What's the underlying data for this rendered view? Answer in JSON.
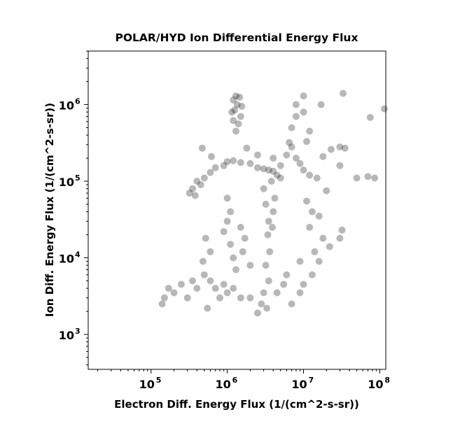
{
  "chart_data": {
    "type": "scatter",
    "title": "POLAR/HYD  Ion Differential Energy Flux",
    "xlabel": "Electron Diff. Energy Flux (1/(cm^2-s-sr))",
    "ylabel": "Ion Diff. Energy Flux (1/(cm^2-s-sr))",
    "xscale": "log",
    "yscale": "log",
    "xlim": [
      15000,
      120000000
    ],
    "ylim": [
      350,
      5000000
    ],
    "grid": false,
    "marker_color": "#000000",
    "marker_opacity": 0.28,
    "x_ticks": [
      {
        "value": 100000,
        "base": "10",
        "exp": "5"
      },
      {
        "value": 1000000,
        "base": "10",
        "exp": "6"
      },
      {
        "value": 10000000,
        "base": "10",
        "exp": "7"
      },
      {
        "value": 100000000,
        "base": "10",
        "exp": "8"
      }
    ],
    "y_ticks": [
      {
        "value": 1000,
        "base": "10",
        "exp": "3"
      },
      {
        "value": 10000,
        "base": "10",
        "exp": "4"
      },
      {
        "value": 100000,
        "base": "10",
        "exp": "5"
      },
      {
        "value": 1000000,
        "base": "10",
        "exp": "6"
      }
    ],
    "points": [
      [
        1300000,
        1300000
      ],
      [
        1450000,
        1250000
      ],
      [
        1200000,
        1150000
      ],
      [
        1350000,
        1000000
      ],
      [
        1250000,
        850000
      ],
      [
        1500000,
        700000
      ],
      [
        1200000,
        620000
      ],
      [
        1400000,
        560000
      ],
      [
        1300000,
        450000
      ],
      [
        1150000,
        800000
      ],
      [
        1550000,
        950000
      ],
      [
        1000000,
        180000
      ],
      [
        1500000,
        175000
      ],
      [
        2000000,
        170000
      ],
      [
        2500000,
        150000
      ],
      [
        3000000,
        145000
      ],
      [
        3500000,
        140000
      ],
      [
        4000000,
        135000
      ],
      [
        4500000,
        120000
      ],
      [
        5000000,
        110000
      ],
      [
        700000,
        150000
      ],
      [
        600000,
        130000
      ],
      [
        500000,
        110000
      ],
      [
        400000,
        100000
      ],
      [
        350000,
        80000
      ],
      [
        320000,
        70000
      ],
      [
        380000,
        65000
      ],
      [
        450000,
        90000
      ],
      [
        900000,
        160000
      ],
      [
        1200000,
        185000
      ],
      [
        1000000,
        60000
      ],
      [
        1100000,
        40000
      ],
      [
        1000000,
        30000
      ],
      [
        900000,
        22000
      ],
      [
        1100000,
        15000
      ],
      [
        1200000,
        10000
      ],
      [
        1300000,
        7000
      ],
      [
        1500000,
        25000
      ],
      [
        1700000,
        18000
      ],
      [
        1600000,
        12000
      ],
      [
        2000000,
        8000
      ],
      [
        3000000,
        80000
      ],
      [
        3200000,
        50000
      ],
      [
        3500000,
        30000
      ],
      [
        3400000,
        20000
      ],
      [
        3600000,
        12000
      ],
      [
        3200000,
        8000
      ],
      [
        3500000,
        5000
      ],
      [
        3000000,
        3500
      ],
      [
        2800000,
        2500
      ],
      [
        3300000,
        2200
      ],
      [
        2500000,
        1900
      ],
      [
        3800000,
        100000
      ],
      [
        4200000,
        60000
      ],
      [
        4000000,
        40000
      ],
      [
        3900000,
        25000
      ],
      [
        150000,
        3000
      ],
      [
        170000,
        4000
      ],
      [
        200000,
        3500
      ],
      [
        140000,
        2500
      ],
      [
        250000,
        4500
      ],
      [
        300000,
        3000
      ],
      [
        350000,
        5000
      ],
      [
        400000,
        4000
      ],
      [
        500000,
        6000
      ],
      [
        600000,
        5000
      ],
      [
        700000,
        4000
      ],
      [
        800000,
        3000
      ],
      [
        900000,
        4500
      ],
      [
        1000000,
        3500
      ],
      [
        1200000,
        4000
      ],
      [
        1500000,
        3000
      ],
      [
        2000000,
        3000
      ],
      [
        4500000,
        3500
      ],
      [
        5500000,
        4500
      ],
      [
        6000000,
        6000
      ],
      [
        7000000,
        2500
      ],
      [
        9000000,
        3500
      ],
      [
        10000000,
        4500
      ],
      [
        550000,
        2200
      ],
      [
        600000,
        12000
      ],
      [
        480000,
        9000
      ],
      [
        520000,
        18000
      ],
      [
        6500000,
        320000
      ],
      [
        7000000,
        280000
      ],
      [
        8000000,
        200000
      ],
      [
        6000000,
        220000
      ],
      [
        9000000,
        170000
      ],
      [
        10000000,
        140000
      ],
      [
        12000000,
        120000
      ],
      [
        15000000,
        110000
      ],
      [
        20000000,
        75000
      ],
      [
        11000000,
        55000
      ],
      [
        13000000,
        40000
      ],
      [
        16000000,
        35000
      ],
      [
        12000000,
        25000
      ],
      [
        18000000,
        18000
      ],
      [
        14000000,
        12000
      ],
      [
        9000000,
        9000
      ],
      [
        8000000,
        700000
      ],
      [
        10000000,
        1300000
      ],
      [
        8000000,
        1000000
      ],
      [
        17000000,
        1000000
      ],
      [
        10000000,
        800000
      ],
      [
        7000000,
        500000
      ],
      [
        12000000,
        450000
      ],
      [
        11000000,
        330000
      ],
      [
        18000000,
        210000
      ],
      [
        23000000,
        260000
      ],
      [
        33000000,
        1400000
      ],
      [
        30000000,
        280000
      ],
      [
        35000000,
        270000
      ],
      [
        30000000,
        160000
      ],
      [
        50000000,
        110000
      ],
      [
        70000000,
        115000
      ],
      [
        86000000,
        110000
      ],
      [
        75000000,
        680000
      ],
      [
        115000000,
        880000
      ],
      [
        32000000,
        23000
      ],
      [
        30000000,
        18000
      ],
      [
        22000000,
        14000
      ],
      [
        16000000,
        9000
      ],
      [
        13000000,
        6000
      ],
      [
        470000,
        270000
      ],
      [
        620000,
        210000
      ],
      [
        1800000,
        270000
      ],
      [
        2500000,
        220000
      ],
      [
        5000000,
        160000
      ],
      [
        4000000,
        200000
      ]
    ]
  }
}
